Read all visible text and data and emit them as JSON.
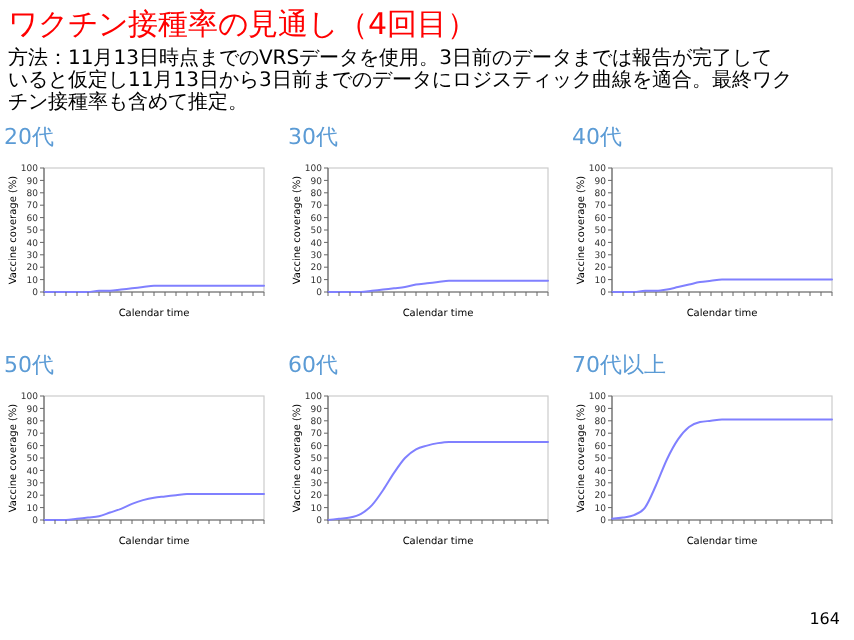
{
  "chart_data": [
    {
      "type": "line",
      "title": "20代",
      "annotations": [
        "ワクチン接種率の見通し（4回目）",
        "方法：11月13日時点までのVRSデータを使用。3日前のデータまでは報告が完了していると仮定し11月13日から3日前までのデータにロジスティック曲線を適合。最終ワクチン接種率も含めて推定。"
      ],
      "xlabel": "Calendar time",
      "ylabel": "Vaccine coverage (%)",
      "categories": [
        null,
        null,
        null,
        null,
        null,
        null,
        null,
        null,
        null,
        null,
        null,
        null,
        null,
        null,
        null,
        null,
        null,
        null,
        null,
        null,
        null
      ],
      "ylim": [
        0,
        100
      ],
      "yticks": [
        0,
        10,
        20,
        30,
        40,
        50,
        60,
        70,
        80,
        90,
        100
      ],
      "series": [
        {
          "color": "#8080ff",
          "values": [
            0,
            0,
            0,
            0,
            0,
            1,
            1,
            2,
            3,
            4,
            5,
            5,
            5,
            5,
            5,
            5,
            5,
            5,
            5,
            5,
            5
          ]
        }
      ]
    },
    {
      "type": "line",
      "title": "30代",
      "xlabel": "Calendar time",
      "ylabel": "Vaccine coverage (%)",
      "categories": [
        null,
        null,
        null,
        null,
        null,
        null,
        null,
        null,
        null,
        null,
        null,
        null,
        null,
        null,
        null,
        null,
        null,
        null,
        null,
        null,
        null
      ],
      "ylim": [
        0,
        100
      ],
      "yticks": [
        0,
        10,
        20,
        30,
        40,
        50,
        60,
        70,
        80,
        90,
        100
      ],
      "series": [
        {
          "color": "#8080ff",
          "values": [
            0,
            0,
            0,
            0,
            1,
            2,
            3,
            4,
            6,
            7,
            8,
            9,
            9,
            9,
            9,
            9,
            9,
            9,
            9,
            9,
            9
          ]
        }
      ]
    },
    {
      "type": "line",
      "title": "40代",
      "xlabel": "Calendar time",
      "ylabel": "Vaccine coverage (%)",
      "categories": [
        null,
        null,
        null,
        null,
        null,
        null,
        null,
        null,
        null,
        null,
        null,
        null,
        null,
        null,
        null,
        null,
        null,
        null,
        null,
        null,
        null
      ],
      "ylim": [
        0,
        100
      ],
      "yticks": [
        0,
        10,
        20,
        30,
        40,
        50,
        60,
        70,
        80,
        90,
        100
      ],
      "series": [
        {
          "color": "#8080ff",
          "values": [
            0,
            0,
            0,
            1,
            1,
            2,
            4,
            6,
            8,
            9,
            10,
            10,
            10,
            10,
            10,
            10,
            10,
            10,
            10,
            10,
            10
          ]
        }
      ]
    },
    {
      "type": "line",
      "title": "50代",
      "xlabel": "Calendar time",
      "ylabel": "Vaccine coverage (%)",
      "categories": [
        null,
        null,
        null,
        null,
        null,
        null,
        null,
        null,
        null,
        null,
        null,
        null,
        null,
        null,
        null,
        null,
        null,
        null,
        null,
        null,
        null
      ],
      "ylim": [
        0,
        100
      ],
      "yticks": [
        0,
        10,
        20,
        30,
        40,
        50,
        60,
        70,
        80,
        90,
        100
      ],
      "series": [
        {
          "color": "#8080ff",
          "values": [
            0,
            0,
            0,
            1,
            2,
            3,
            6,
            9,
            13,
            16,
            18,
            19,
            20,
            21,
            21,
            21,
            21,
            21,
            21,
            21,
            21
          ]
        }
      ]
    },
    {
      "type": "line",
      "title": "60代",
      "xlabel": "Calendar time",
      "ylabel": "Vaccine coverage (%)",
      "categories": [
        null,
        null,
        null,
        null,
        null,
        null,
        null,
        null,
        null,
        null,
        null,
        null,
        null,
        null,
        null,
        null,
        null,
        null,
        null,
        null,
        null
      ],
      "ylim": [
        0,
        100
      ],
      "yticks": [
        0,
        10,
        20,
        30,
        40,
        50,
        60,
        70,
        80,
        90,
        100
      ],
      "series": [
        {
          "color": "#8080ff",
          "values": [
            0,
            1,
            2,
            5,
            12,
            24,
            38,
            50,
            57,
            60,
            62,
            63,
            63,
            63,
            63,
            63,
            63,
            63,
            63,
            63,
            63
          ]
        }
      ]
    },
    {
      "type": "line",
      "title": "70代以上",
      "annotations": [
        "164"
      ],
      "xlabel": "Calendar time",
      "ylabel": "Vaccine coverage (%)",
      "categories": [
        null,
        null,
        null,
        null,
        null,
        null,
        null,
        null,
        null,
        null,
        null,
        null,
        null,
        null,
        null,
        null,
        null,
        null,
        null,
        null,
        null
      ],
      "ylim": [
        0,
        100
      ],
      "yticks": [
        0,
        10,
        20,
        30,
        40,
        50,
        60,
        70,
        80,
        90,
        100
      ],
      "series": [
        {
          "color": "#8080ff",
          "values": [
            1,
            2,
            4,
            10,
            28,
            49,
            65,
            75,
            79,
            80,
            81,
            81,
            81,
            81,
            81,
            81,
            81,
            81,
            81,
            81,
            81
          ]
        }
      ]
    }
  ]
}
